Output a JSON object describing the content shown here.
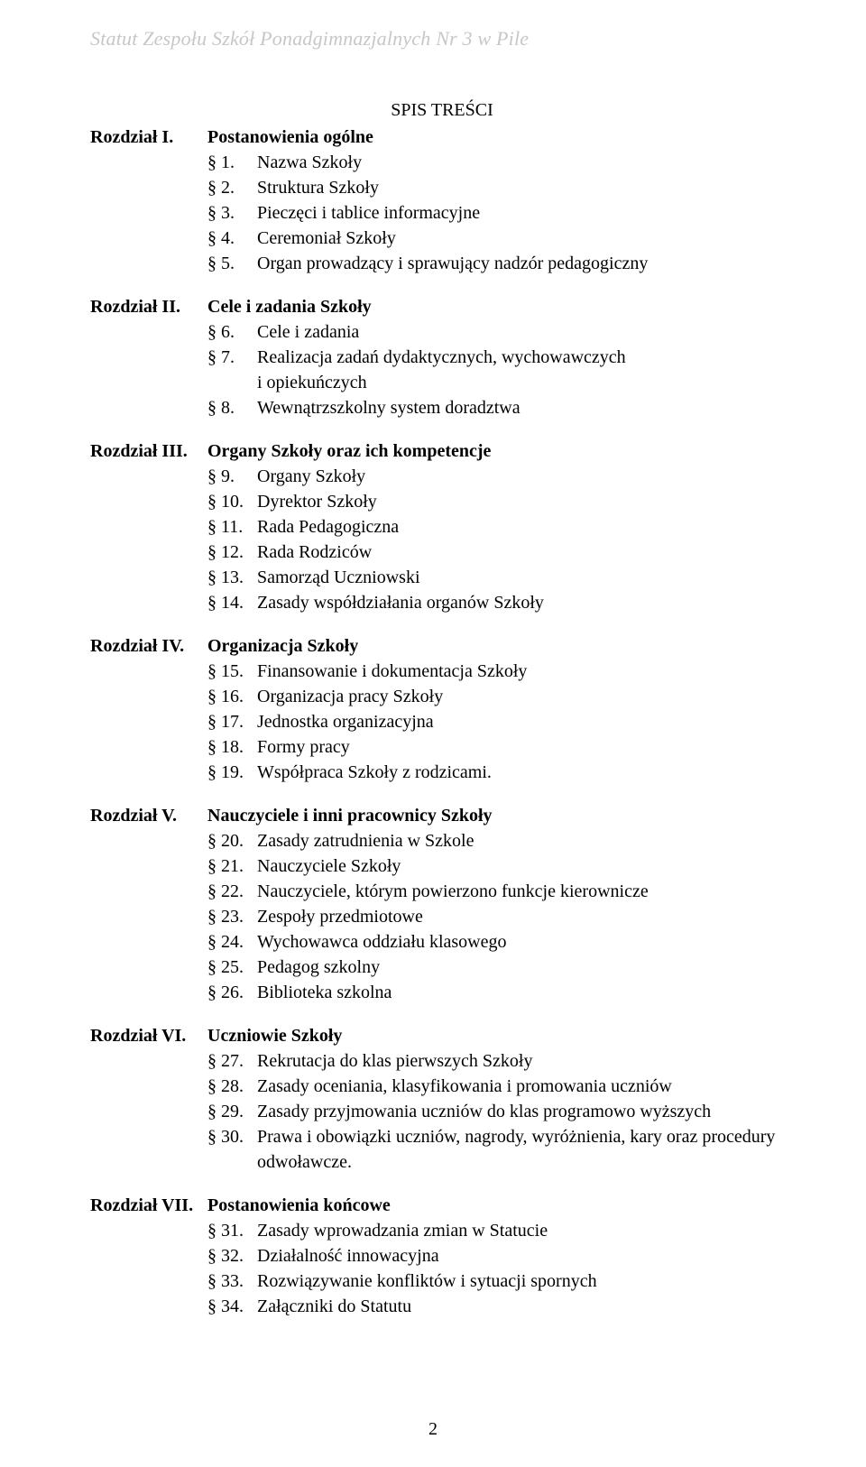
{
  "colors": {
    "header_text": "#c7c7c7",
    "body_text": "#000000",
    "background": "#ffffff"
  },
  "typography": {
    "family": "Times New Roman",
    "header_size_pt": 16,
    "body_size_pt": 15
  },
  "header": "Statut Zespołu Szkół Ponadgimnazjalnych Nr 3 w Pile",
  "toc_title": "SPIS TREŚCI",
  "page_number": "2",
  "sections": [
    {
      "label": "Rozdział I.",
      "title": "Postanowienia ogólne",
      "items": [
        {
          "num": "§  1.",
          "text": "Nazwa Szkoły"
        },
        {
          "num": "§  2.",
          "text": "Struktura Szkoły"
        },
        {
          "num": "§  3.",
          "text": "Pieczęci i tablice informacyjne"
        },
        {
          "num": "§  4.",
          "text": "Ceremoniał Szkoły"
        },
        {
          "num": "§  5.",
          "text": "Organ prowadzący i sprawujący nadzór pedagogiczny"
        }
      ]
    },
    {
      "label": "Rozdział II.",
      "title": "Cele i zadania Szkoły",
      "items": [
        {
          "num": "§  6.",
          "text": "Cele i zadania"
        },
        {
          "num": "§  7.",
          "text": "Realizacja zadań dydaktycznych, wychowawczych",
          "cont": "i opiekuńczych"
        },
        {
          "num": "§  8.",
          "text": "Wewnątrzszkolny system doradztwa"
        }
      ]
    },
    {
      "label": "Rozdział III.",
      "title": "Organy Szkoły oraz ich kompetencje",
      "items": [
        {
          "num": "§   9.",
          "text": "Organy Szkoły"
        },
        {
          "num": "§ 10.",
          "text": "Dyrektor Szkoły"
        },
        {
          "num": "§ 11.",
          "text": "Rada Pedagogiczna"
        },
        {
          "num": "§ 12.",
          "text": "Rada Rodziców"
        },
        {
          "num": "§ 13.",
          "text": "Samorząd Uczniowski"
        },
        {
          "num": "§ 14.",
          "text": "Zasady współdziałania organów Szkoły"
        }
      ]
    },
    {
      "label": "Rozdział IV.",
      "title": "Organizacja Szkoły",
      "items": [
        {
          "num": "§ 15.",
          "text": "Finansowanie i dokumentacja Szkoły"
        },
        {
          "num": "§ 16.",
          "text": "Organizacja pracy Szkoły"
        },
        {
          "num": "§ 17.",
          "text": "Jednostka organizacyjna"
        },
        {
          "num": "§ 18.",
          "text": "Formy pracy"
        },
        {
          "num": "§ 19.",
          "text": "Współpraca Szkoły z rodzicami."
        }
      ]
    },
    {
      "label": "Rozdział V.",
      "title": "Nauczyciele i inni pracownicy Szkoły",
      "items": [
        {
          "num": "§ 20.",
          "text": "Zasady zatrudnienia w Szkole"
        },
        {
          "num": "§ 21.",
          "text": "Nauczyciele Szkoły"
        },
        {
          "num": "§ 22.",
          "text": "Nauczyciele, którym powierzono funkcje kierownicze"
        },
        {
          "num": "§ 23.",
          "text": "Zespoły przedmiotowe"
        },
        {
          "num": "§ 24.",
          "text": "Wychowawca oddziału klasowego"
        },
        {
          "num": "§ 25.",
          "text": "Pedagog szkolny"
        },
        {
          "num": "§ 26.",
          "text": "Biblioteka szkolna"
        }
      ]
    },
    {
      "label": "Rozdział VI.",
      "title": "Uczniowie Szkoły",
      "items": [
        {
          "num": "§ 27.",
          "text": "Rekrutacja do klas pierwszych Szkoły"
        },
        {
          "num": "§ 28.",
          "text": "Zasady oceniania, klasyfikowania i promowania uczniów"
        },
        {
          "num": "§ 29.",
          "text": "Zasady przyjmowania uczniów do klas programowo wyższych"
        },
        {
          "num": "§ 30.",
          "text": "Prawa i obowiązki uczniów, nagrody, wyróżnienia, kary oraz procedury",
          "cont": "odwoławcze."
        }
      ]
    },
    {
      "label": "Rozdział VII.",
      "title": "Postanowienia końcowe",
      "items": [
        {
          "num": "§ 31.",
          "text": "Zasady wprowadzania zmian w Statucie"
        },
        {
          "num": "§ 32.",
          "text": "Działalność innowacyjna"
        },
        {
          "num": "§ 33.",
          "text": "Rozwiązywanie konfliktów i sytuacji spornych"
        },
        {
          "num": "§ 34.",
          "text": "Załączniki do Statutu"
        }
      ]
    }
  ]
}
